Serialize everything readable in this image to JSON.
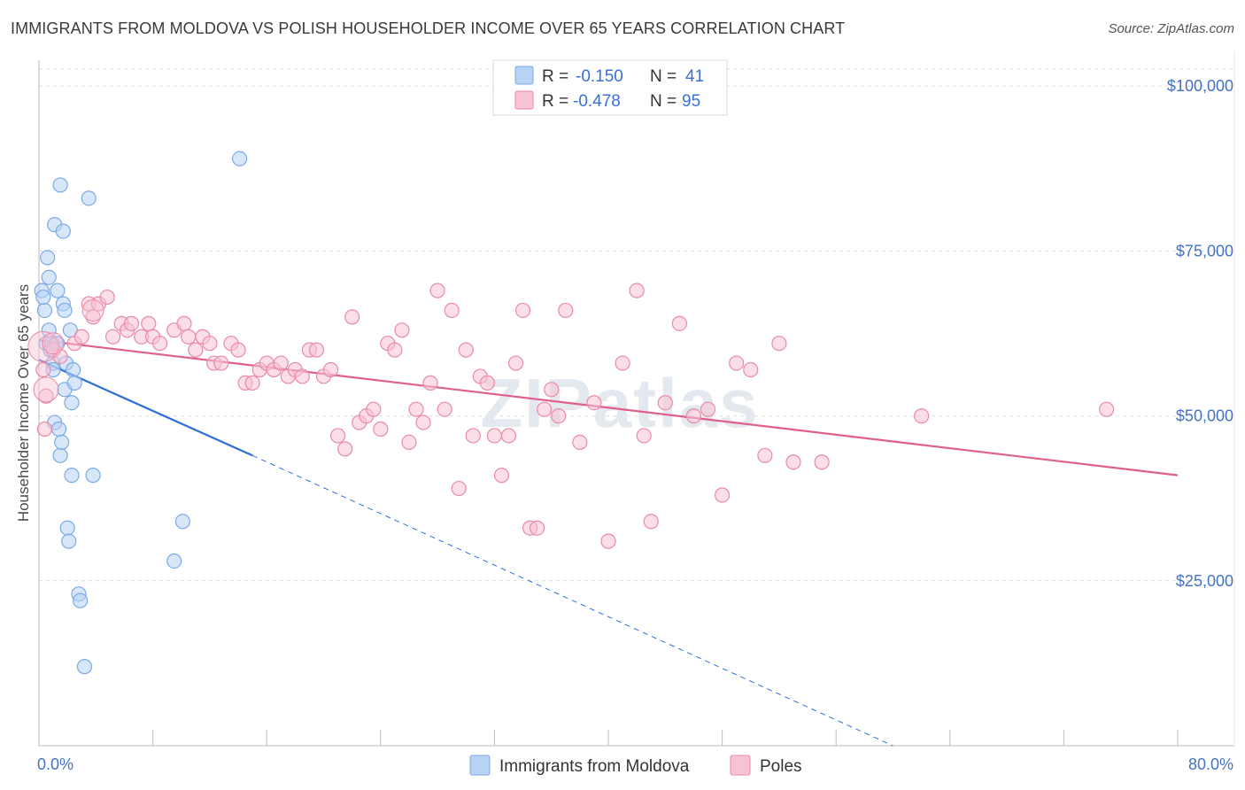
{
  "title": "IMMIGRANTS FROM MOLDOVA VS POLISH HOUSEHOLDER INCOME OVER 65 YEARS CORRELATION CHART",
  "source": "Source: ZipAtlas.com",
  "watermark": "ZIPatlas",
  "chart_data": {
    "type": "scatter",
    "xlabel": "",
    "ylabel": "Householder Income Over 65 years",
    "xlim": [
      0,
      80
    ],
    "ylim": [
      0,
      105000
    ],
    "x_tick_labels": [
      "0.0%",
      "80.0%"
    ],
    "y_ticks": [
      25000,
      50000,
      75000,
      100000
    ],
    "y_tick_labels": [
      "$25,000",
      "$50,000",
      "$75,000",
      "$100,000"
    ],
    "grid": true,
    "legend": [
      {
        "name": "Immigrants from Moldova",
        "r_label": "R =",
        "r": "-0.150",
        "n_label": "N =",
        "n": "41",
        "color": "#7aaae6",
        "fill": "#b8d2f4"
      },
      {
        "name": "Poles",
        "r_label": "R =",
        "r": "-0.478",
        "n_label": "N =",
        "n": "95",
        "color": "#e98aa8",
        "fill": "#f7c3d3"
      }
    ],
    "series": [
      {
        "name": "Immigrants from Moldova",
        "color": "#7aaae6",
        "points": [
          [
            0.2,
            69
          ],
          [
            0.4,
            66
          ],
          [
            0.5,
            61
          ],
          [
            0.6,
            74
          ],
          [
            0.7,
            63
          ],
          [
            0.7,
            71
          ],
          [
            0.8,
            60
          ],
          [
            0.9,
            61
          ],
          [
            1.0,
            60
          ],
          [
            1.0,
            58
          ],
          [
            1.1,
            49
          ],
          [
            1.1,
            79
          ],
          [
            1.2,
            61
          ],
          [
            1.3,
            69
          ],
          [
            1.3,
            61
          ],
          [
            1.4,
            48
          ],
          [
            1.5,
            44
          ],
          [
            1.5,
            85
          ],
          [
            1.6,
            46
          ],
          [
            1.7,
            67
          ],
          [
            1.7,
            78
          ],
          [
            1.8,
            54
          ],
          [
            1.8,
            66
          ],
          [
            1.9,
            58
          ],
          [
            2.0,
            33
          ],
          [
            2.1,
            31
          ],
          [
            2.2,
            63
          ],
          [
            2.3,
            52
          ],
          [
            2.3,
            41
          ],
          [
            2.4,
            57
          ],
          [
            2.5,
            55
          ],
          [
            2.8,
            23
          ],
          [
            2.9,
            22
          ],
          [
            3.2,
            12
          ],
          [
            3.5,
            83
          ],
          [
            3.8,
            41
          ],
          [
            9.5,
            28
          ],
          [
            10.1,
            34
          ],
          [
            14.1,
            89
          ],
          [
            0.3,
            68
          ],
          [
            1.0,
            57
          ]
        ],
        "trend": {
          "x": [
            0,
            15
          ],
          "y": [
            58500,
            44000
          ],
          "dashed_to": [
            60,
            0
          ]
        }
      },
      {
        "name": "Poles",
        "color": "#e98aa8",
        "points": [
          [
            0.3,
            57
          ],
          [
            0.4,
            48
          ],
          [
            0.5,
            53
          ],
          [
            1.0,
            60
          ],
          [
            1.5,
            59
          ],
          [
            2.5,
            61
          ],
          [
            3.0,
            62
          ],
          [
            3.5,
            67
          ],
          [
            3.8,
            65
          ],
          [
            4.2,
            67
          ],
          [
            4.8,
            68
          ],
          [
            5.2,
            62
          ],
          [
            5.8,
            64
          ],
          [
            6.2,
            63
          ],
          [
            6.5,
            64
          ],
          [
            7.2,
            62
          ],
          [
            7.7,
            64
          ],
          [
            8.0,
            62
          ],
          [
            8.5,
            61
          ],
          [
            9.5,
            63
          ],
          [
            10.2,
            64
          ],
          [
            10.5,
            62
          ],
          [
            11.0,
            60
          ],
          [
            11.5,
            62
          ],
          [
            12.0,
            61
          ],
          [
            12.3,
            58
          ],
          [
            12.8,
            58
          ],
          [
            13.5,
            61
          ],
          [
            14.0,
            60
          ],
          [
            14.5,
            55
          ],
          [
            15.0,
            55
          ],
          [
            15.5,
            57
          ],
          [
            16.0,
            58
          ],
          [
            16.5,
            57
          ],
          [
            17.0,
            58
          ],
          [
            17.5,
            56
          ],
          [
            18.0,
            57
          ],
          [
            18.5,
            56
          ],
          [
            19.0,
            60
          ],
          [
            19.5,
            60
          ],
          [
            20.0,
            56
          ],
          [
            20.5,
            57
          ],
          [
            21.0,
            47
          ],
          [
            21.5,
            45
          ],
          [
            22.0,
            65
          ],
          [
            22.5,
            49
          ],
          [
            23.0,
            50
          ],
          [
            23.5,
            51
          ],
          [
            24.0,
            48
          ],
          [
            24.5,
            61
          ],
          [
            25.0,
            60
          ],
          [
            25.5,
            63
          ],
          [
            26.0,
            46
          ],
          [
            26.5,
            51
          ],
          [
            27.0,
            49
          ],
          [
            27.5,
            55
          ],
          [
            28.0,
            69
          ],
          [
            28.5,
            51
          ],
          [
            29.0,
            66
          ],
          [
            29.5,
            39
          ],
          [
            30.0,
            60
          ],
          [
            30.5,
            47
          ],
          [
            31.0,
            56
          ],
          [
            31.5,
            55
          ],
          [
            32.0,
            47
          ],
          [
            32.5,
            41
          ],
          [
            33.0,
            47
          ],
          [
            33.5,
            58
          ],
          [
            34.0,
            66
          ],
          [
            34.5,
            33
          ],
          [
            35.0,
            33
          ],
          [
            35.5,
            51
          ],
          [
            36.0,
            54
          ],
          [
            36.5,
            50
          ],
          [
            37.0,
            66
          ],
          [
            38.0,
            46
          ],
          [
            39.0,
            52
          ],
          [
            40.0,
            31
          ],
          [
            41.0,
            58
          ],
          [
            42.0,
            69
          ],
          [
            42.5,
            47
          ],
          [
            43.0,
            34
          ],
          [
            44.0,
            52
          ],
          [
            45.0,
            64
          ],
          [
            46.0,
            50
          ],
          [
            47.0,
            51
          ],
          [
            48.0,
            38
          ],
          [
            49.0,
            58
          ],
          [
            50.0,
            57
          ],
          [
            51.0,
            44
          ],
          [
            52.0,
            61
          ],
          [
            53.0,
            43
          ],
          [
            55.0,
            43
          ],
          [
            62.0,
            50
          ],
          [
            75.0,
            51
          ]
        ],
        "trend": {
          "x": [
            0,
            80
          ],
          "y": [
            61500,
            41000
          ]
        }
      }
    ]
  }
}
